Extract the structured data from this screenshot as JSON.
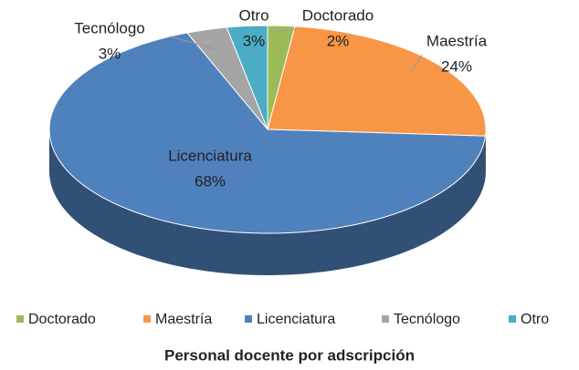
{
  "chart_data": {
    "type": "pie3d",
    "title": "Personal docente por adscripción",
    "categories": [
      "Doctorado",
      "Maestría",
      "Licenciatura",
      "Tecnólogo",
      "Otro"
    ],
    "values": [
      2,
      24,
      68,
      3,
      3
    ],
    "value_labels": [
      "2%",
      "24%",
      "68%",
      "3%",
      "3%"
    ],
    "colors": [
      "#9bbb59",
      "#f79646",
      "#4f81bd",
      "#a5a5a5",
      "#4bacc6"
    ],
    "legend": "bottom"
  }
}
